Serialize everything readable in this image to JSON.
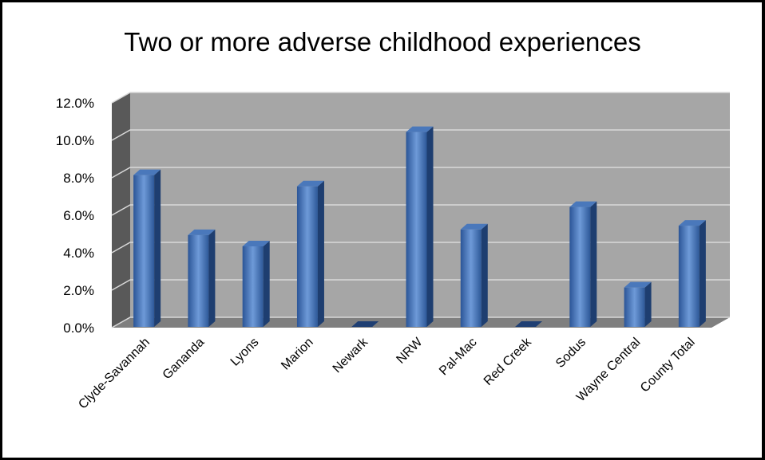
{
  "chart_data": {
    "type": "bar",
    "title": "Two or more adverse childhood experiences",
    "categories": [
      "Clyde-Savannah",
      "Gananda",
      "Lyons",
      "Marion",
      "Newark",
      "NRW",
      "Pal-Mac",
      "Red Creek",
      "Sodus",
      "Wayne Central",
      "County Total"
    ],
    "values": [
      8.1,
      4.9,
      4.3,
      7.5,
      0.0,
      10.4,
      5.2,
      0.0,
      6.4,
      2.1,
      5.4
    ],
    "y_ticks": [
      "0.0%",
      "2.0%",
      "4.0%",
      "6.0%",
      "8.0%",
      "10.0%",
      "12.0%"
    ],
    "ylim": [
      0,
      12
    ],
    "grid": true,
    "legend": "none",
    "bar_color": "#3a6db3",
    "wall_color": "#a6a6a6",
    "floor_color": "#7f7f7f"
  }
}
